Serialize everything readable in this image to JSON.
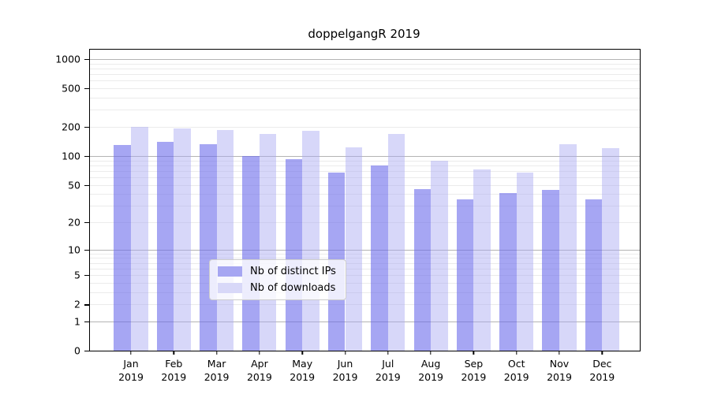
{
  "chart_data": {
    "type": "bar",
    "title": "doppelgangR 2019",
    "year_label": "2019",
    "categories": [
      "Jan",
      "Feb",
      "Mar",
      "Apr",
      "May",
      "Jun",
      "Jul",
      "Aug",
      "Sep",
      "Oct",
      "Nov",
      "Dec"
    ],
    "series": [
      {
        "name": "Nb of distinct IPs",
        "values": [
          130,
          139,
          133,
          99,
          93,
          67,
          80,
          45,
          35,
          41,
          44,
          35
        ],
        "bar_color": "rgba(104,104,234,0.59)",
        "legend_color": "#a6a6f2"
      },
      {
        "name": "Nb of downloads",
        "values": [
          202,
          193,
          185,
          168,
          182,
          123,
          168,
          90,
          73,
          67,
          133,
          121
        ],
        "bar_color": "rgba(168,168,241,0.46)",
        "legend_color": "#d8d8f8"
      }
    ],
    "y_ticks": [
      0,
      1,
      2,
      5,
      10,
      20,
      50,
      100,
      200,
      500,
      1000
    ],
    "scale": "log10(1+x)",
    "ylim": [
      0,
      1250
    ],
    "xlabel": "",
    "ylabel": "",
    "grid": true,
    "legend_position": "lower-center",
    "colors": {
      "grid_major": "#b3b3b3",
      "grid_minor": "#ebebeb",
      "axis": "#000000",
      "background": "#ffffff"
    }
  }
}
